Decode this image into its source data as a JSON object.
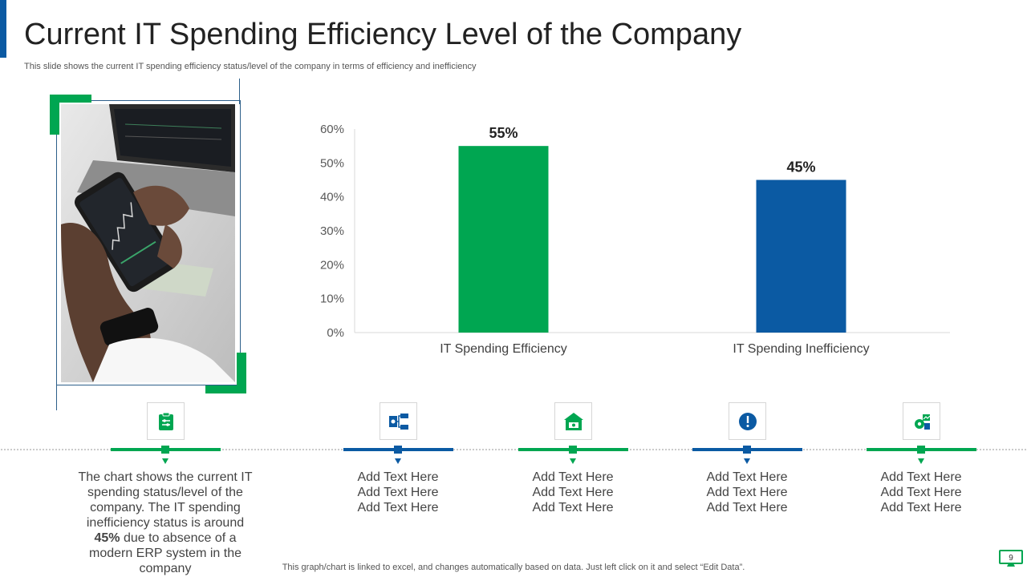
{
  "header": {
    "title": "Current IT Spending Efficiency Level of the Company",
    "subtitle": "This slide shows the current IT  spending efficiency status/level of the company in terms of efficiency and inefficiency"
  },
  "colors": {
    "green": "#00a651",
    "blue": "#0b5aa3"
  },
  "chart_data": {
    "type": "bar",
    "title": "",
    "categories": [
      "IT Spending Efficiency",
      "IT Spending Inefficiency"
    ],
    "values": [
      55,
      45
    ],
    "data_labels": [
      "55%",
      "45%"
    ],
    "bar_colors": [
      "#00a651",
      "#0b5aa3"
    ],
    "ylim": [
      0,
      60
    ],
    "yticks": [
      0,
      10,
      20,
      30,
      40,
      50,
      60
    ],
    "ytick_labels": [
      "0%",
      "10%",
      "20%",
      "30%",
      "40%",
      "50%",
      "60%"
    ],
    "xlabel": "",
    "ylabel": "",
    "grid": false
  },
  "steps": [
    {
      "icon": "clipboard-settings-icon",
      "text_before": "The chart shows the current IT spending status/level  of the company. The IT  spending inefficiency status is around ",
      "text_bold": "45%",
      "text_after": " due to absence of a modern ERP system in the company"
    },
    {
      "icon": "network-diagram-icon",
      "lines": [
        "Add Text Here",
        "Add Text Here",
        "Add Text Here"
      ]
    },
    {
      "icon": "house-monitor-icon",
      "lines": [
        "Add Text Here",
        "Add Text Here",
        "Add Text Here"
      ]
    },
    {
      "icon": "exclamation-icon",
      "lines": [
        "Add Text Here",
        "Add Text Here",
        "Add Text Here"
      ]
    },
    {
      "icon": "gear-growth-icon",
      "lines": [
        "Add Text Here",
        "Add Text Here",
        "Add Text Here"
      ]
    }
  ],
  "footer": {
    "note": "This graph/chart is linked to excel,  and changes automatically based on data. Just left click on it and select “Edit Data”.",
    "page_number": "9"
  }
}
